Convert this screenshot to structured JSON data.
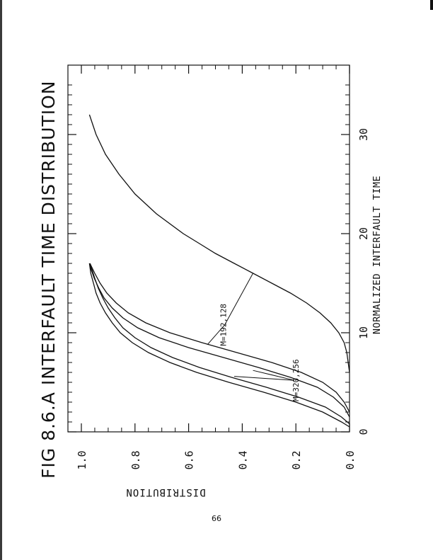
{
  "chart_data": {
    "type": "line",
    "title": "FIG 8.6.A INTERFAULT TIME DISTRIBUTION",
    "xlabel": "NORMALIZED INTERFAULT TIME",
    "ylabel": "DISTRIBUTION",
    "xlim": [
      0,
      35
    ],
    "ylim": [
      0,
      1.1
    ],
    "xticks": [
      {
        "value": 0,
        "label": "0"
      },
      {
        "value": 10,
        "label": "10"
      },
      {
        "value": 20,
        "label": "20"
      },
      {
        "value": 30,
        "label": "30"
      }
    ],
    "yticks": [
      {
        "value": 0.0,
        "label": "0.0"
      },
      {
        "value": 0.2,
        "label": "0.2"
      },
      {
        "value": 0.4,
        "label": "0.4"
      },
      {
        "value": 0.6,
        "label": "0.6"
      },
      {
        "value": 0.8,
        "label": "0.8"
      },
      {
        "value": 1.0,
        "label": "1.0"
      }
    ],
    "grid": false,
    "series": [
      {
        "x": [
          0.5,
          1.0,
          2.0,
          3.0,
          4.0,
          5.0,
          6.0,
          7.0,
          8.0,
          9.0,
          10.0,
          11.0,
          12.0,
          13.0,
          14.0,
          15.0,
          16.0,
          17.0
        ],
        "y": [
          0.0,
          0.03,
          0.1,
          0.2,
          0.32,
          0.45,
          0.57,
          0.67,
          0.75,
          0.81,
          0.855,
          0.885,
          0.91,
          0.93,
          0.945,
          0.955,
          0.965,
          0.97
        ]
      },
      {
        "x": [
          0.8,
          1.5,
          2.5,
          3.5,
          4.5,
          5.5,
          6.5,
          7.5,
          8.5,
          9.5,
          10.5,
          11.5,
          12.5,
          13.5,
          14.5,
          15.5,
          16.5,
          17.0
        ],
        "y": [
          0.0,
          0.03,
          0.09,
          0.19,
          0.31,
          0.44,
          0.56,
          0.66,
          0.74,
          0.8,
          0.845,
          0.875,
          0.9,
          0.92,
          0.937,
          0.95,
          0.962,
          0.968
        ]
      },
      {
        "x": [
          1.5,
          2.5,
          3.5,
          4.5,
          5.5,
          6.5,
          7.5,
          8.5,
          9.5,
          10.5,
          11.5,
          12.5,
          13.5,
          14.5,
          15.5,
          16.5,
          17.0
        ],
        "y": [
          0.0,
          0.02,
          0.06,
          0.12,
          0.22,
          0.34,
          0.47,
          0.6,
          0.71,
          0.79,
          0.845,
          0.885,
          0.915,
          0.935,
          0.952,
          0.965,
          0.97
        ]
      },
      {
        "x": [
          2.0,
          3.0,
          4.0,
          5.0,
          6.0,
          7.0,
          8.0,
          9.0,
          10.0,
          11.0,
          12.0,
          13.0,
          14.0,
          15.0,
          16.0,
          17.0
        ],
        "y": [
          0.0,
          0.02,
          0.05,
          0.1,
          0.18,
          0.29,
          0.42,
          0.55,
          0.67,
          0.76,
          0.825,
          0.87,
          0.905,
          0.93,
          0.95,
          0.968
        ]
      },
      {
        "x": [
          6.0,
          7.0,
          8.0,
          9.0,
          10.0,
          11.0,
          12.0,
          13.0,
          14.0,
          15.0,
          16.0,
          17.0,
          18.0,
          19.0,
          20.0,
          22.0,
          24.0,
          26.0,
          28.0,
          30.0,
          32.0
        ],
        "y": [
          0.0,
          0.005,
          0.01,
          0.02,
          0.04,
          0.07,
          0.11,
          0.16,
          0.22,
          0.29,
          0.36,
          0.43,
          0.5,
          0.56,
          0.62,
          0.72,
          0.8,
          0.86,
          0.91,
          0.945,
          0.97
        ]
      }
    ],
    "annotations": [
      {
        "text": "M=320,256",
        "x": 5.2,
        "y": 0.19
      },
      {
        "text": "M=192,128",
        "x": 10.8,
        "y": 0.46
      }
    ]
  },
  "page": {
    "page_number": "66"
  }
}
